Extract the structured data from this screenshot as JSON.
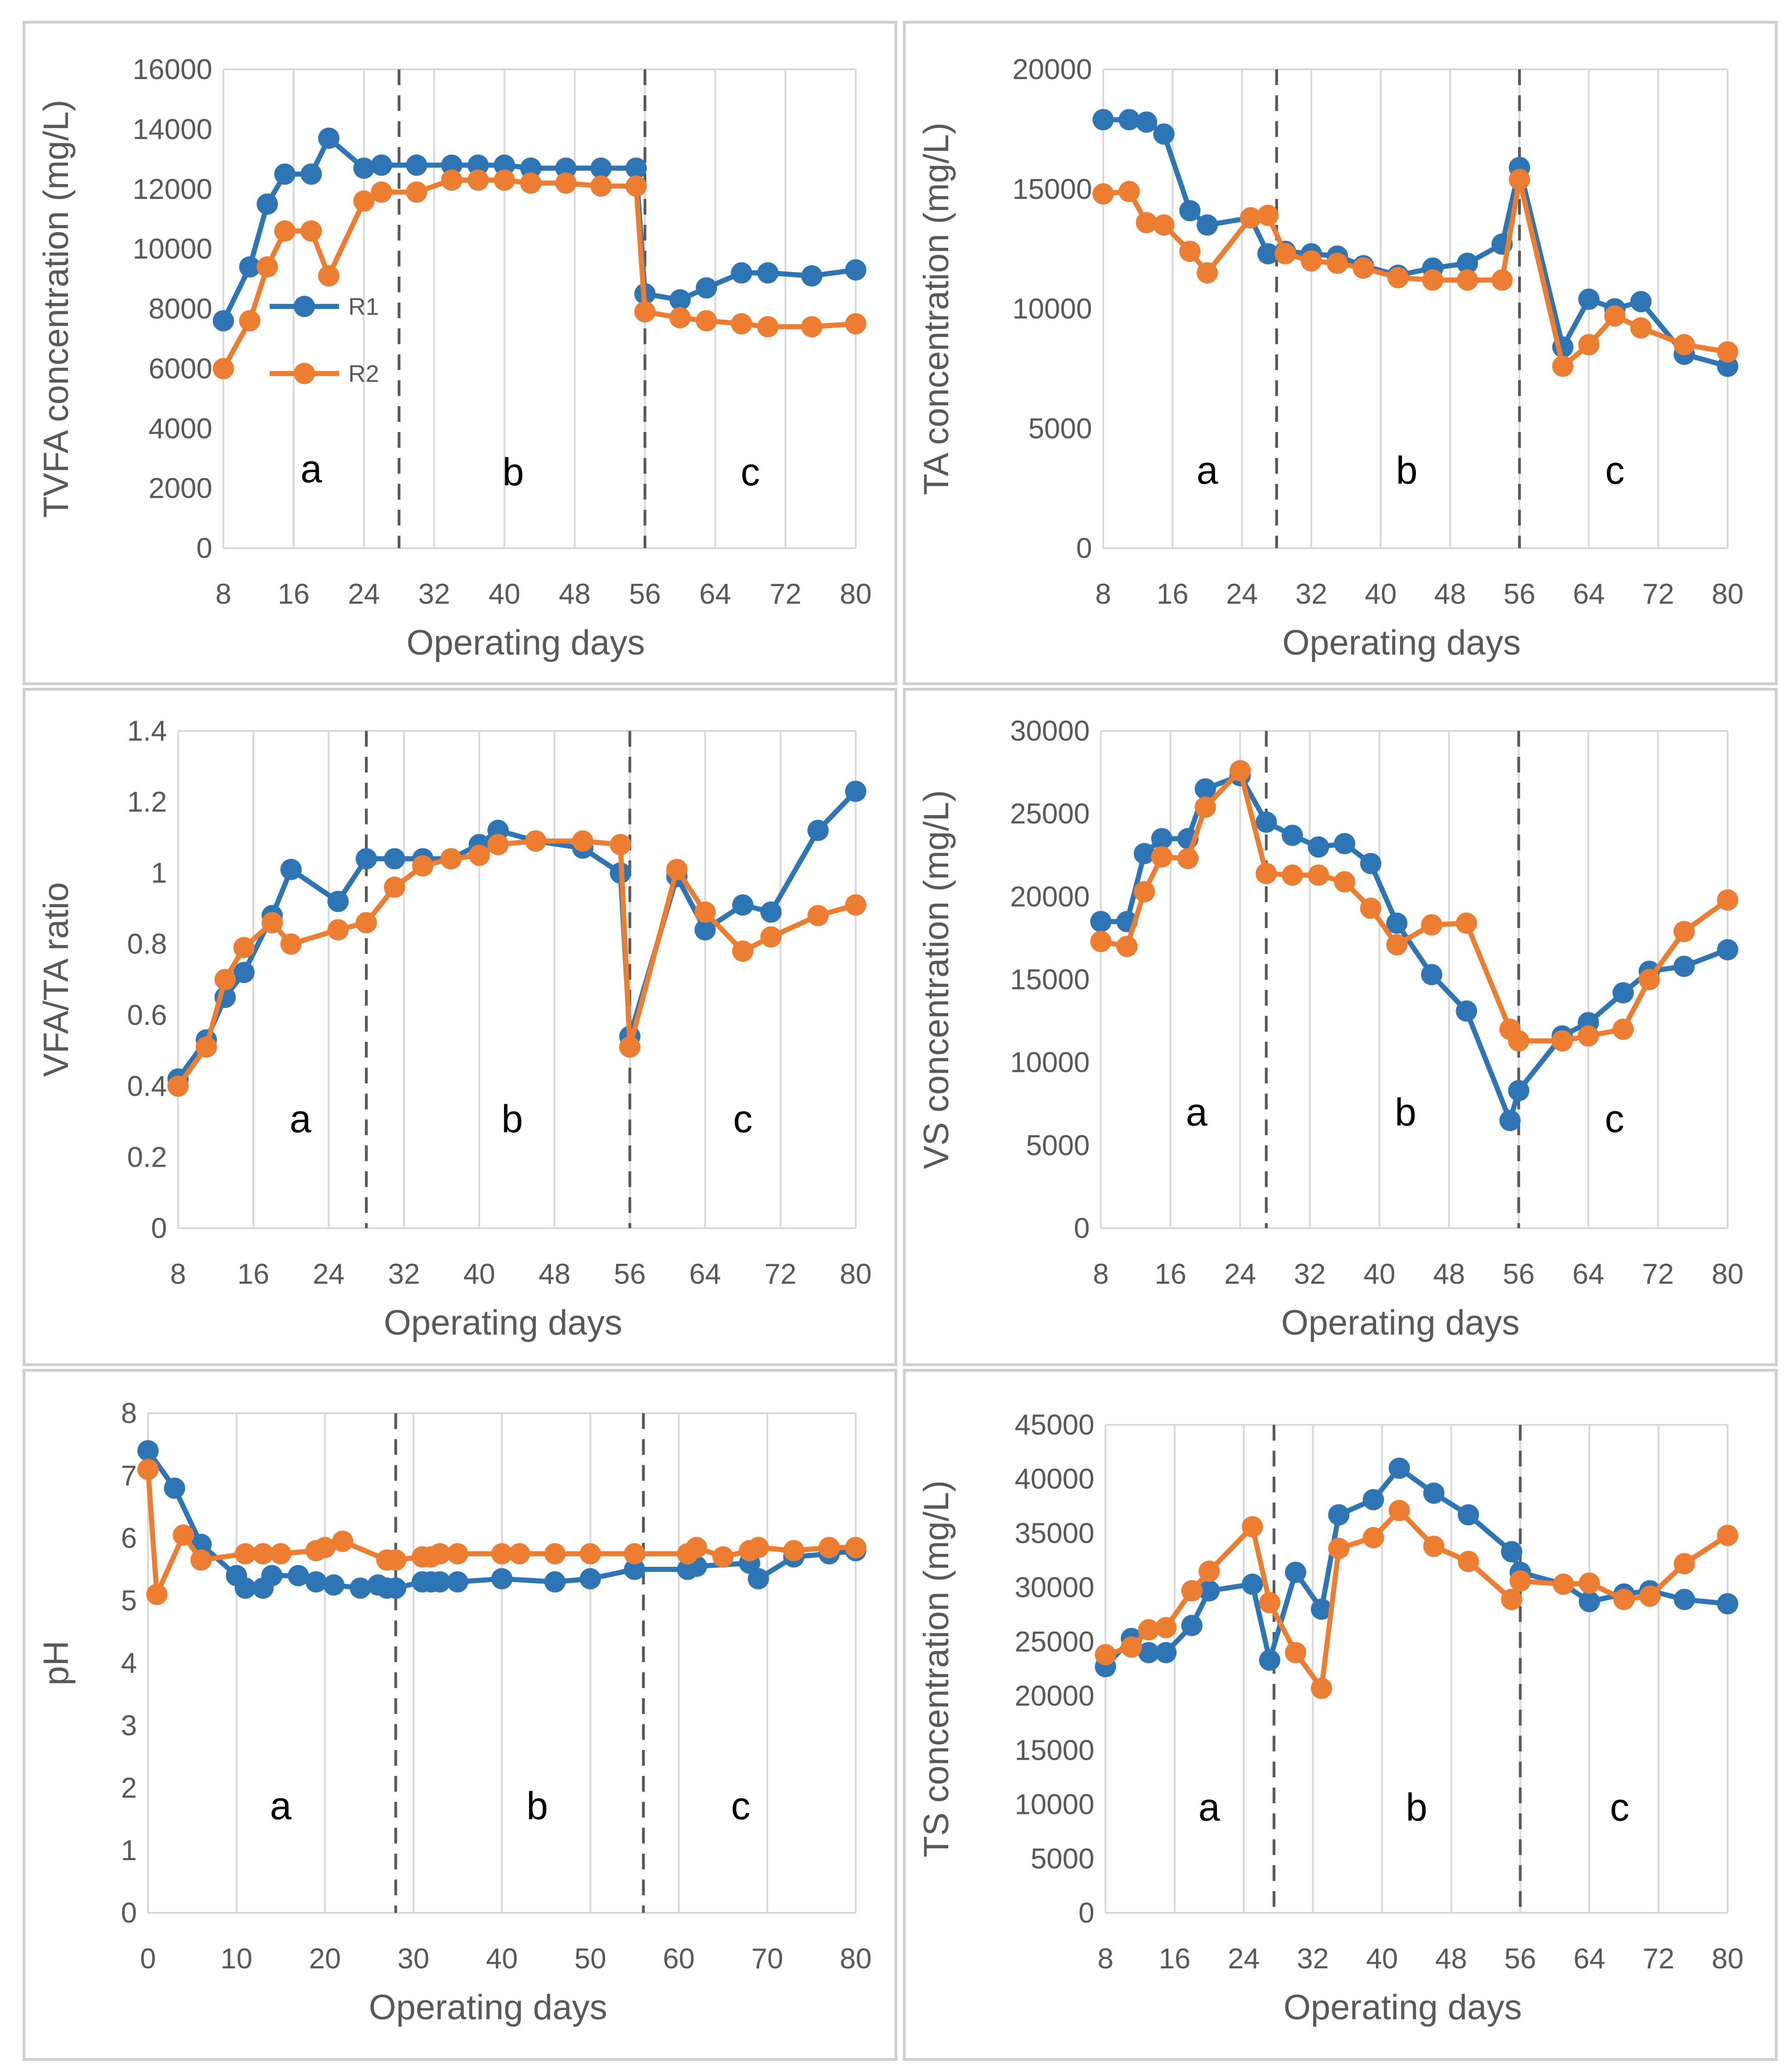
{
  "colors": {
    "R1": "#2e75b6",
    "R2": "#ed7d31"
  },
  "chart_data": [
    {
      "type": "line",
      "panel": "top-left",
      "xlabel": "Operating days",
      "ylabel": "TVFA concentration (mg/L)",
      "xlim": [
        8,
        80
      ],
      "ylim": [
        0,
        16000
      ],
      "xticks": [
        "8",
        "16",
        "24",
        "32",
        "40",
        "48",
        "56",
        "64",
        "72",
        "80"
      ],
      "yticks": [
        "0",
        "2000",
        "4000",
        "6000",
        "8000",
        "10000",
        "12000",
        "14000",
        "16000"
      ],
      "grid": "vertical",
      "dividers": [
        28,
        56
      ],
      "phase_labels": [
        {
          "text": "a",
          "x": 18,
          "y": 2200
        },
        {
          "text": "b",
          "x": 41,
          "y": 2100
        },
        {
          "text": "c",
          "x": 68,
          "y": 2100
        }
      ],
      "legend": {
        "position": "left-middle",
        "entries": [
          "R1",
          "R2"
        ]
      },
      "series": [
        {
          "name": "R1",
          "x": [
            8,
            11,
            13,
            15,
            18,
            20,
            24,
            26,
            30,
            34,
            37,
            40,
            43,
            47,
            51,
            55,
            56,
            60,
            63,
            67,
            70,
            75,
            80
          ],
          "y": [
            7600,
            9400,
            11500,
            12500,
            12500,
            13700,
            12700,
            12800,
            12800,
            12800,
            12800,
            12800,
            12700,
            12700,
            12700,
            12700,
            8500,
            8300,
            8700,
            9200,
            9200,
            9100,
            9300
          ]
        },
        {
          "name": "R2",
          "x": [
            8,
            11,
            13,
            15,
            18,
            20,
            24,
            26,
            30,
            34,
            37,
            40,
            43,
            47,
            51,
            55,
            56,
            60,
            63,
            67,
            70,
            75,
            80
          ],
          "y": [
            6000,
            7600,
            9400,
            10600,
            10600,
            9100,
            11600,
            11900,
            11900,
            12300,
            12300,
            12300,
            12200,
            12200,
            12100,
            12100,
            7900,
            7700,
            7600,
            7500,
            7400,
            7400,
            7500
          ]
        }
      ]
    },
    {
      "type": "line",
      "panel": "top-right",
      "xlabel": "Operating days",
      "ylabel": "TA concentration (mg/L)",
      "xlim": [
        8,
        80
      ],
      "ylim": [
        0,
        20000
      ],
      "xticks": [
        "8",
        "16",
        "24",
        "32",
        "40",
        "48",
        "56",
        "64",
        "72",
        "80"
      ],
      "yticks": [
        "0",
        "5000",
        "10000",
        "15000",
        "20000"
      ],
      "grid": "vertical",
      "dividers": [
        28,
        56
      ],
      "phase_labels": [
        {
          "text": "a",
          "x": 20,
          "y": 2700
        },
        {
          "text": "b",
          "x": 43,
          "y": 2700
        },
        {
          "text": "c",
          "x": 67,
          "y": 2700
        }
      ],
      "series": [
        {
          "name": "R1",
          "x": [
            8,
            11,
            13,
            15,
            18,
            20,
            25,
            27,
            29,
            32,
            35,
            38,
            42,
            46,
            50,
            54,
            56,
            61,
            64,
            67,
            70,
            75,
            80
          ],
          "y": [
            17900,
            17900,
            17800,
            17300,
            14100,
            13500,
            13800,
            12300,
            12400,
            12300,
            12200,
            11800,
            11400,
            11700,
            11900,
            12700,
            15900,
            8400,
            10400,
            10000,
            10300,
            8100,
            7600
          ]
        },
        {
          "name": "R2",
          "x": [
            8,
            11,
            13,
            15,
            18,
            20,
            25,
            27,
            29,
            32,
            35,
            38,
            42,
            46,
            50,
            54,
            56,
            61,
            64,
            67,
            70,
            75,
            80
          ],
          "y": [
            14800,
            14900,
            13600,
            13500,
            12400,
            11500,
            13800,
            13900,
            12300,
            12000,
            11900,
            11700,
            11300,
            11200,
            11200,
            11200,
            15400,
            7600,
            8500,
            9700,
            9200,
            8500,
            8200
          ]
        }
      ]
    },
    {
      "type": "line",
      "panel": "middle-left",
      "xlabel": "Operating days",
      "ylabel": "VFA/TA ratio",
      "xlim": [
        8,
        80
      ],
      "ylim": [
        0,
        1.4
      ],
      "xticks": [
        "8",
        "16",
        "24",
        "32",
        "40",
        "48",
        "56",
        "64",
        "72",
        "80"
      ],
      "yticks": [
        "0",
        "0.2",
        "0.4",
        "0.6",
        "0.8",
        "1",
        "1.2",
        "1.4"
      ],
      "grid": "vertical",
      "dividers": [
        28,
        56
      ],
      "phase_labels": [
        {
          "text": "a",
          "x": 21,
          "y": 0.27
        },
        {
          "text": "b",
          "x": 43.5,
          "y": 0.27
        },
        {
          "text": "c",
          "x": 68,
          "y": 0.27
        }
      ],
      "series": [
        {
          "name": "R1",
          "x": [
            8,
            11,
            13,
            15,
            18,
            20,
            25,
            28,
            31,
            34,
            37,
            40,
            42,
            46,
            51,
            55,
            56,
            61,
            64,
            68,
            71,
            76,
            80
          ],
          "y": [
            0.42,
            0.53,
            0.65,
            0.72,
            0.88,
            1.01,
            0.92,
            1.04,
            1.04,
            1.04,
            1.04,
            1.08,
            1.12,
            1.09,
            1.07,
            1.0,
            0.54,
            0.99,
            0.84,
            0.91,
            0.89,
            1.12,
            1.23
          ]
        },
        {
          "name": "R2",
          "x": [
            8,
            11,
            13,
            15,
            18,
            20,
            25,
            28,
            31,
            34,
            37,
            40,
            42,
            46,
            51,
            55,
            56,
            61,
            64,
            68,
            71,
            76,
            80
          ],
          "y": [
            0.4,
            0.51,
            0.7,
            0.79,
            0.86,
            0.8,
            0.84,
            0.86,
            0.96,
            1.02,
            1.04,
            1.05,
            1.08,
            1.09,
            1.09,
            1.08,
            0.51,
            1.01,
            0.89,
            0.78,
            0.82,
            0.88,
            0.91
          ]
        }
      ]
    },
    {
      "type": "line",
      "panel": "middle-right",
      "xlabel": "Operating days",
      "ylabel": "VS concentration (mg/L)",
      "xlim": [
        8,
        80
      ],
      "ylim": [
        0,
        30000
      ],
      "xticks": [
        "8",
        "16",
        "24",
        "32",
        "40",
        "48",
        "56",
        "64",
        "72",
        "80"
      ],
      "yticks": [
        "0",
        "5000",
        "10000",
        "15000",
        "20000",
        "25000",
        "30000"
      ],
      "grid": "vertical",
      "dividers": [
        27,
        56
      ],
      "phase_labels": [
        {
          "text": "a",
          "x": 19,
          "y": 6200
        },
        {
          "text": "b",
          "x": 43,
          "y": 6200
        },
        {
          "text": "c",
          "x": 67,
          "y": 5800
        }
      ],
      "series": [
        {
          "name": "R1",
          "x": [
            8,
            11,
            13,
            15,
            18,
            20,
            24,
            27,
            30,
            33,
            36,
            39,
            42,
            46,
            50,
            55,
            56,
            61,
            64,
            68,
            71,
            75,
            80
          ],
          "y": [
            18500,
            18500,
            22600,
            23500,
            23500,
            26500,
            27300,
            24500,
            23700,
            23000,
            23200,
            22000,
            18400,
            15300,
            13100,
            6500,
            8300,
            11600,
            12400,
            14200,
            15500,
            15800,
            16800
          ]
        },
        {
          "name": "R2",
          "x": [
            8,
            11,
            13,
            15,
            18,
            20,
            24,
            27,
            30,
            33,
            36,
            39,
            42,
            46,
            50,
            55,
            56,
            61,
            64,
            68,
            71,
            75,
            80
          ],
          "y": [
            17300,
            17000,
            20300,
            22400,
            22300,
            25400,
            27600,
            21400,
            21300,
            21300,
            20900,
            19300,
            17100,
            18300,
            18400,
            12000,
            11300,
            11300,
            11600,
            12000,
            15000,
            17900,
            19800
          ]
        }
      ]
    },
    {
      "type": "line",
      "panel": "bottom-left",
      "xlabel": "Operating days",
      "ylabel": "pH",
      "xlim": [
        0,
        80
      ],
      "ylim": [
        0,
        8
      ],
      "xticks": [
        "0",
        "10",
        "20",
        "30",
        "40",
        "50",
        "60",
        "70",
        "80"
      ],
      "yticks": [
        "0",
        "1",
        "2",
        "3",
        "4",
        "5",
        "6",
        "7",
        "8"
      ],
      "grid": "vertical",
      "dividers": [
        28,
        56
      ],
      "phase_labels": [
        {
          "text": "a",
          "x": 15,
          "y": 1.5
        },
        {
          "text": "b",
          "x": 44,
          "y": 1.5
        },
        {
          "text": "c",
          "x": 67,
          "y": 1.5
        }
      ],
      "series": [
        {
          "name": "R1",
          "x": [
            0,
            3,
            6,
            10,
            11,
            13,
            14,
            17,
            19,
            21,
            24,
            26,
            27,
            28,
            31,
            32,
            33,
            35,
            40,
            46,
            50,
            55,
            61,
            62,
            68,
            69,
            73,
            77,
            80
          ],
          "y": [
            7.4,
            6.8,
            5.9,
            5.4,
            5.2,
            5.2,
            5.4,
            5.4,
            5.3,
            5.25,
            5.2,
            5.25,
            5.2,
            5.2,
            5.3,
            5.3,
            5.3,
            5.3,
            5.35,
            5.3,
            5.35,
            5.5,
            5.5,
            5.55,
            5.6,
            5.35,
            5.7,
            5.75,
            5.8
          ]
        },
        {
          "name": "R2",
          "x": [
            0,
            1,
            4,
            6,
            11,
            13,
            15,
            19,
            20,
            22,
            27,
            28,
            31,
            32,
            33,
            35,
            40,
            42,
            46,
            50,
            55,
            61,
            62,
            65,
            68,
            69,
            73,
            77,
            80
          ],
          "y": [
            7.1,
            5.1,
            6.05,
            5.65,
            5.75,
            5.75,
            5.75,
            5.8,
            5.85,
            5.95,
            5.65,
            5.65,
            5.7,
            5.7,
            5.75,
            5.75,
            5.75,
            5.75,
            5.75,
            5.75,
            5.75,
            5.75,
            5.85,
            5.7,
            5.8,
            5.85,
            5.8,
            5.85,
            5.85
          ]
        }
      ]
    },
    {
      "type": "line",
      "panel": "bottom-right",
      "xlabel": "Operating days",
      "ylabel": "TS concentration (mg/L)",
      "xlim": [
        8,
        80
      ],
      "ylim": [
        0,
        45000
      ],
      "xticks": [
        "8",
        "16",
        "24",
        "32",
        "40",
        "48",
        "56",
        "64",
        "72",
        "80"
      ],
      "yticks": [
        "0",
        "5000",
        "10000",
        "15000",
        "20000",
        "25000",
        "30000",
        "35000",
        "40000",
        "45000"
      ],
      "grid": "vertical",
      "dividers": [
        27.5,
        56
      ],
      "phase_labels": [
        {
          "text": "a",
          "x": 20,
          "y": 8500
        },
        {
          "text": "b",
          "x": 44,
          "y": 8500
        },
        {
          "text": "c",
          "x": 67.5,
          "y": 8500
        }
      ],
      "series": [
        {
          "name": "R1",
          "x": [
            8,
            11,
            13,
            15,
            18,
            20,
            25,
            27,
            30,
            33,
            35,
            39,
            42,
            46,
            50,
            55,
            56,
            61,
            64,
            68,
            71,
            75,
            80
          ],
          "y": [
            22700,
            25300,
            24000,
            24000,
            26500,
            29700,
            30300,
            23300,
            31400,
            28000,
            36700,
            38100,
            41000,
            38700,
            36700,
            33300,
            31400,
            30300,
            28700,
            29400,
            29700,
            28900,
            28500
          ]
        },
        {
          "name": "R2",
          "x": [
            8,
            11,
            13,
            15,
            18,
            20,
            25,
            27,
            30,
            33,
            35,
            39,
            42,
            46,
            50,
            55,
            56,
            61,
            64,
            68,
            71,
            75,
            80
          ],
          "y": [
            23800,
            24500,
            26100,
            26300,
            29700,
            31500,
            35600,
            28600,
            24000,
            20700,
            33600,
            34600,
            37100,
            33800,
            32400,
            28900,
            30600,
            30300,
            30400,
            28900,
            29200,
            32200,
            34800
          ]
        }
      ]
    }
  ]
}
